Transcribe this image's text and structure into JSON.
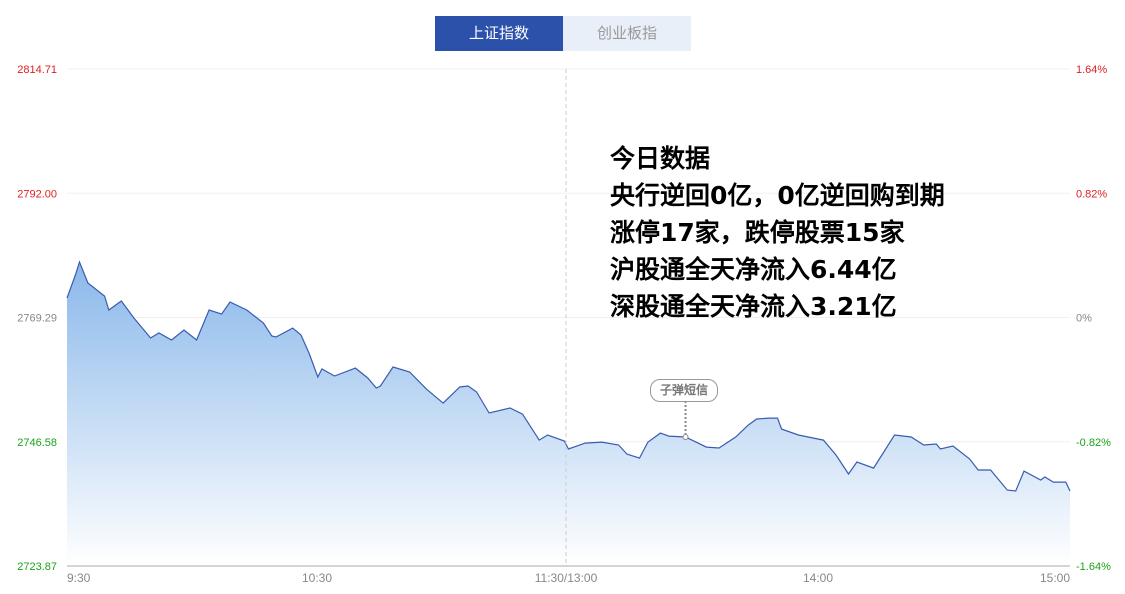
{
  "tabs": [
    {
      "label": "上证指数",
      "active": true
    },
    {
      "label": "创业板指",
      "active": false
    }
  ],
  "overlay": {
    "lines": [
      "今日数据",
      "央行逆回0亿，0亿逆回购到期",
      "涨停17家，跌停股票15家",
      "沪股通全天净流入6.44亿",
      "深股通全天净流入3.21亿"
    ]
  },
  "annotation": {
    "label": "子弹短信",
    "time": "13:28"
  },
  "colors": {
    "line": "#3a5cb0",
    "fill_top": "#8ab8ea",
    "fill_bottom": "#ffffff",
    "up": "#e02020",
    "down": "#1aa31a",
    "flat": "#888888",
    "active_tab": "#2c51ab"
  },
  "chart_data": {
    "type": "area",
    "title": "",
    "xlabel": "",
    "ylabel": "",
    "ylim": [
      2723.87,
      2814.71
    ],
    "prev_close": 2769.29,
    "grid": true,
    "y_ticks_left": [
      "2814.71",
      "2792.00",
      "2769.29",
      "2746.58",
      "2723.87"
    ],
    "y_ticks_right": [
      "1.64%",
      "0.82%",
      "0%",
      "-0.82%",
      "-1.64%"
    ],
    "x_ticks": [
      "9:30",
      "10:30",
      "11:30/13:00",
      "14:00",
      "15:00"
    ],
    "points": [
      [
        "9:30",
        2772.85
      ],
      [
        "9:32",
        2777.05
      ],
      [
        "9:33",
        2779.43
      ],
      [
        "9:35",
        2775.59
      ],
      [
        "9:39",
        2773.21
      ],
      [
        "9:40",
        2770.66
      ],
      [
        "9:43",
        2772.3
      ],
      [
        "9:46",
        2769.19
      ],
      [
        "9:50",
        2765.54
      ],
      [
        "9:52",
        2766.45
      ],
      [
        "9:55",
        2765.17
      ],
      [
        "9:58",
        2767.0
      ],
      [
        "10:01",
        2765.17
      ],
      [
        "10:04",
        2770.66
      ],
      [
        "10:07",
        2769.92
      ],
      [
        "10:09",
        2772.12
      ],
      [
        "10:13",
        2770.66
      ],
      [
        "10:17",
        2768.28
      ],
      [
        "10:19",
        2765.9
      ],
      [
        "10:20",
        2765.72
      ],
      [
        "10:24",
        2767.36
      ],
      [
        "10:26",
        2766.09
      ],
      [
        "10:28",
        2762.61
      ],
      [
        "10:30",
        2758.41
      ],
      [
        "10:31",
        2759.87
      ],
      [
        "10:34",
        2758.59
      ],
      [
        "10:39",
        2760.05
      ],
      [
        "10:42",
        2758.22
      ],
      [
        "10:44",
        2756.4
      ],
      [
        "10:45",
        2756.77
      ],
      [
        "10:48",
        2760.24
      ],
      [
        "10:52",
        2759.32
      ],
      [
        "10:56",
        2756.21
      ],
      [
        "11:00",
        2753.65
      ],
      [
        "11:04",
        2756.58
      ],
      [
        "11:06",
        2756.77
      ],
      [
        "11:08",
        2755.67
      ],
      [
        "11:11",
        2751.83
      ],
      [
        "11:16",
        2752.74
      ],
      [
        "11:19",
        2751.64
      ],
      [
        "11:23",
        2746.89
      ],
      [
        "11:25",
        2747.81
      ],
      [
        "11:29",
        2746.71
      ],
      [
        "13:00",
        2745.25
      ],
      [
        "13:04",
        2746.34
      ],
      [
        "13:08",
        2746.52
      ],
      [
        "13:12",
        2745.98
      ],
      [
        "13:14",
        2744.33
      ],
      [
        "13:17",
        2743.6
      ],
      [
        "13:19",
        2746.52
      ],
      [
        "13:22",
        2748.17
      ],
      [
        "13:24",
        2747.62
      ],
      [
        "13:28",
        2747.44
      ],
      [
        "13:33",
        2745.61
      ],
      [
        "13:36",
        2745.43
      ],
      [
        "13:40",
        2747.44
      ],
      [
        "13:43",
        2749.63
      ],
      [
        "13:45",
        2750.73
      ],
      [
        "13:48",
        2750.91
      ],
      [
        "13:50",
        2750.91
      ],
      [
        "13:51",
        2748.9
      ],
      [
        "13:55",
        2747.81
      ],
      [
        "14:01",
        2746.89
      ],
      [
        "14:04",
        2744.15
      ],
      [
        "14:07",
        2740.68
      ],
      [
        "14:09",
        2742.87
      ],
      [
        "14:13",
        2741.77
      ],
      [
        "14:15",
        2744.15
      ],
      [
        "14:18",
        2747.81
      ],
      [
        "14:22",
        2747.44
      ],
      [
        "14:25",
        2745.98
      ],
      [
        "14:28",
        2746.16
      ],
      [
        "14:29",
        2745.25
      ],
      [
        "14:32",
        2745.8
      ],
      [
        "14:36",
        2743.42
      ],
      [
        "14:38",
        2741.41
      ],
      [
        "14:41",
        2741.41
      ],
      [
        "14:45",
        2737.75
      ],
      [
        "14:47",
        2737.57
      ],
      [
        "14:49",
        2741.22
      ],
      [
        "14:53",
        2739.58
      ],
      [
        "14:54",
        2740.13
      ],
      [
        "14:56",
        2739.21
      ],
      [
        "14:59",
        2739.21
      ],
      [
        "15:00",
        2737.57
      ]
    ]
  }
}
